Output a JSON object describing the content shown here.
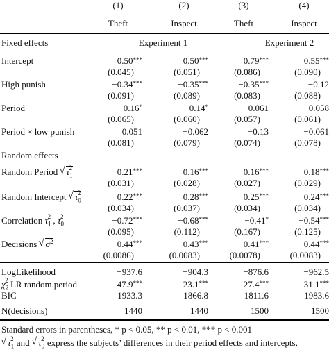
{
  "table": {
    "col_nums": [
      "(1)",
      "(2)",
      "(3)",
      "(4)"
    ],
    "col_names": [
      "Theft",
      "Inspect",
      "Theft",
      "Inspect"
    ],
    "fixed_effects_label": "Fixed effects",
    "experiment1": "Experiment 1",
    "experiment2": "Experiment 2",
    "random_effects_label": "Random effects",
    "rows": [
      {
        "label": "Intercept",
        "coef": [
          "0.50",
          "0.50",
          "0.79",
          "0.55"
        ],
        "stars": [
          "***",
          "***",
          "***",
          "***"
        ],
        "se": [
          "(0.045)",
          "(0.051)",
          "(0.086)",
          "(0.090)"
        ]
      },
      {
        "label": "High punish",
        "coef": [
          "−0.34",
          "−0.35",
          "−0.35",
          "−0.12"
        ],
        "stars": [
          "***",
          "***",
          "***",
          ""
        ],
        "se": [
          "(0.091)",
          "(0.089)",
          "(0.083)",
          "(0.088)"
        ]
      },
      {
        "label": "Period",
        "coef": [
          "0.16",
          "0.14",
          "0.061",
          "0.058"
        ],
        "stars": [
          "*",
          "*",
          "",
          ""
        ],
        "se": [
          "(0.065)",
          "(0.060)",
          "(0.057)",
          "(0.061)"
        ]
      },
      {
        "label": "Period × low punish",
        "coef": [
          "0.051",
          "−0.062",
          "−0.13",
          "−0.061"
        ],
        "stars": [
          "",
          "",
          "",
          ""
        ],
        "se": [
          "(0.081)",
          "(0.079)",
          "(0.074)",
          "(0.078)"
        ]
      }
    ],
    "rand_rows": [
      {
        "label": "Random Period",
        "coef": [
          "0.21",
          "0.16",
          "0.16",
          "0.18"
        ],
        "stars": [
          "***",
          "***",
          "***",
          "***"
        ],
        "se": [
          "(0.031)",
          "(0.028)",
          "(0.027)",
          "(0.029)"
        ]
      },
      {
        "label": "Random Intercept",
        "coef": [
          "0.22",
          "0.28",
          "0.25",
          "0.24"
        ],
        "stars": [
          "***",
          "***",
          "***",
          "***"
        ],
        "se": [
          "(0.034)",
          "(0.037)",
          "(0.034)",
          "(0.034)"
        ]
      },
      {
        "label": "Correlation",
        "coef": [
          "−0.72",
          "−0.68",
          "−0.41",
          "−0.54"
        ],
        "stars": [
          "***",
          "***",
          "*",
          "***"
        ],
        "se": [
          "(0.095)",
          "(0.112)",
          "(0.167)",
          "(0.125)"
        ]
      },
      {
        "label": "Decisions",
        "coef": [
          "0.44",
          "0.43",
          "0.41",
          "0.44"
        ],
        "stars": [
          "***",
          "***",
          "***",
          "***"
        ],
        "se": [
          "(0.0086)",
          "(0.0083)",
          "(0.0078)",
          "(0.0083)"
        ]
      }
    ],
    "stats": [
      {
        "label": "LogLikelihood",
        "vals": [
          "−937.6",
          "−904.3",
          "−876.6",
          "−962.5"
        ],
        "stars": [
          "",
          "",
          "",
          ""
        ]
      },
      {
        "label": "LR random period",
        "vals": [
          "47.9",
          "23.1",
          "27.4",
          "31.1"
        ],
        "stars": [
          "***",
          "***",
          "***",
          "***"
        ]
      },
      {
        "label": "BIC",
        "vals": [
          "1933.3",
          "1866.8",
          "1811.6",
          "1983.6"
        ],
        "stars": [
          "",
          "",
          "",
          ""
        ]
      },
      {
        "label": "N(decisions)",
        "vals": [
          "1440",
          "1440",
          "1500",
          "1500"
        ],
        "stars": [
          "",
          "",
          "",
          ""
        ]
      }
    ]
  },
  "notes": {
    "line1": "Standard errors in parentheses, * p < 0.05, ** p < 0.01, *** p < 0.001",
    "line2_mid": "and",
    "line2_end": "express the subjects’ differences in their period effects and intercepts,"
  }
}
